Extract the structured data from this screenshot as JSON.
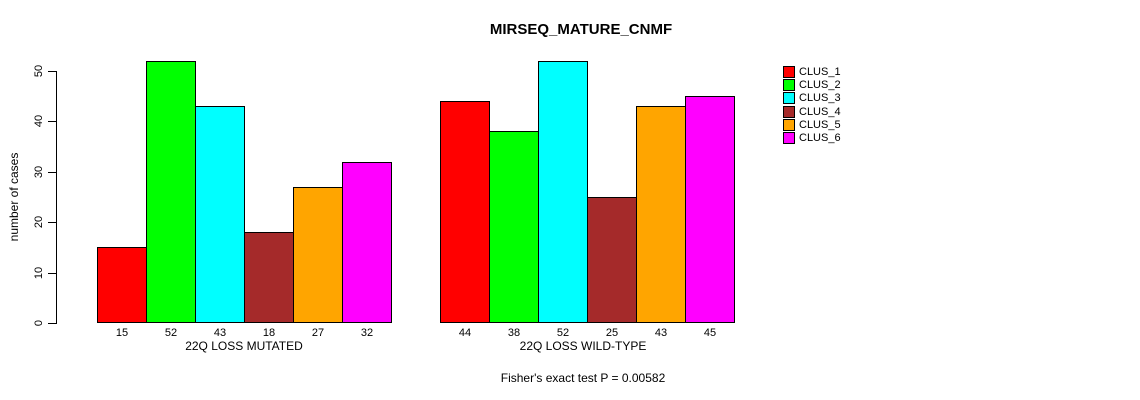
{
  "title": "MIRSEQ_MATURE_CNMF",
  "chart_data": {
    "type": "bar",
    "title": "MIRSEQ_MATURE_CNMF",
    "ylabel": "number of cases",
    "xlabel": "",
    "yticks": [
      0,
      10,
      20,
      30,
      40,
      50
    ],
    "ylim": [
      0,
      52
    ],
    "grid": false,
    "legend_position": "top-right-outside",
    "legend": [
      "CLUS_1",
      "CLUS_2",
      "CLUS_3",
      "CLUS_4",
      "CLUS_5",
      "CLUS_6"
    ],
    "colors": [
      "#FF0000",
      "#00FF00",
      "#00FFFF",
      "#A52A2A",
      "#FFA500",
      "#FF00FF"
    ],
    "bar_value_labels_shown": true,
    "groups": [
      {
        "label": "22Q LOSS MUTATED",
        "values": [
          15,
          52,
          43,
          18,
          27,
          32
        ]
      },
      {
        "label": "22Q LOSS WILD-TYPE",
        "values": [
          44,
          38,
          52,
          25,
          43,
          45
        ]
      }
    ],
    "footnote": "Fisher's exact test P = 0.00582"
  }
}
